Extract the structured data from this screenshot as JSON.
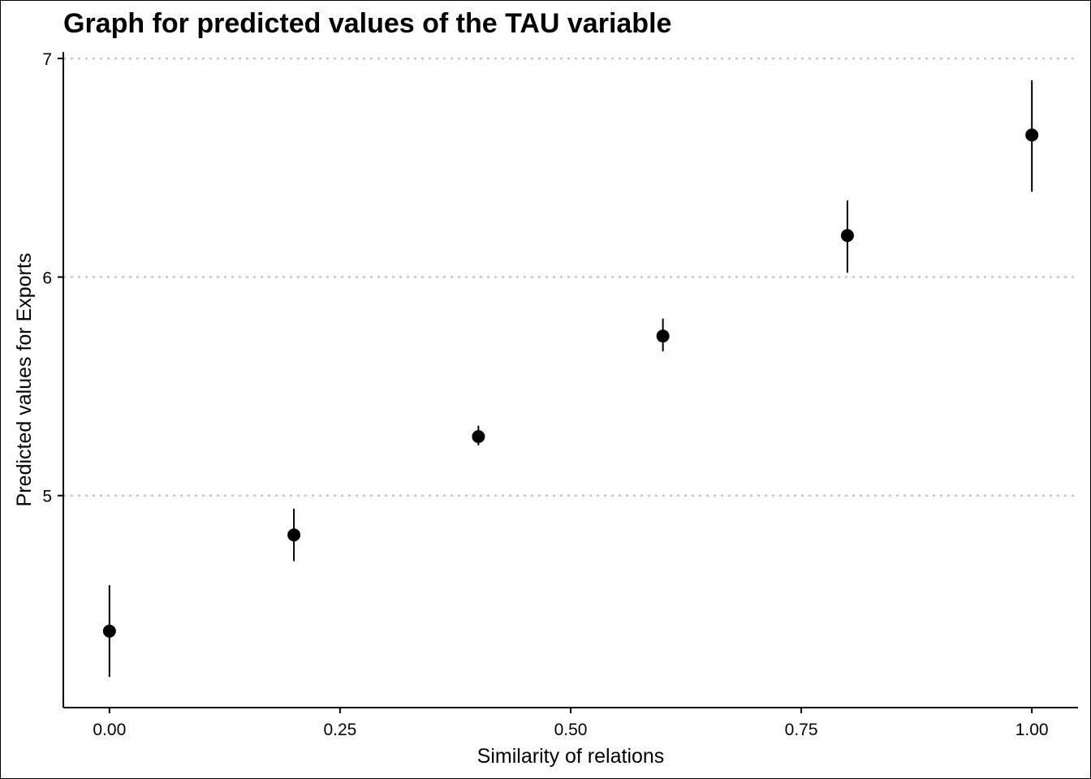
{
  "chart_data": {
    "type": "scatter",
    "title": "Graph for predicted values of the TAU variable",
    "xlabel": "Similarity of relations",
    "ylabel": "Predicted values for Exports",
    "xlim": [
      -0.05,
      1.05
    ],
    "ylim": [
      4.03,
      7.03
    ],
    "x_ticks": [
      0,
      0.25,
      0.5,
      0.75,
      1
    ],
    "x_tick_labels": [
      "0.00",
      "0.25",
      "0.50",
      "0.75",
      "1.00"
    ],
    "y_ticks": [
      5,
      6,
      7
    ],
    "y_tick_labels": [
      "5",
      "6",
      "7"
    ],
    "grid": "horizontal dotted at major y ticks",
    "colors": {
      "points": "#000000",
      "grid": "#c8c8c8",
      "axis": "#000000"
    },
    "points": [
      {
        "x": 0.0,
        "y": 4.38,
        "lower": 4.17,
        "upper": 4.59
      },
      {
        "x": 0.2,
        "y": 4.82,
        "lower": 4.7,
        "upper": 4.94
      },
      {
        "x": 0.4,
        "y": 5.27,
        "lower": 5.23,
        "upper": 5.32
      },
      {
        "x": 0.6,
        "y": 5.73,
        "lower": 5.66,
        "upper": 5.81
      },
      {
        "x": 0.8,
        "y": 6.19,
        "lower": 6.02,
        "upper": 6.35
      },
      {
        "x": 1.0,
        "y": 6.65,
        "lower": 6.39,
        "upper": 6.9
      }
    ]
  }
}
